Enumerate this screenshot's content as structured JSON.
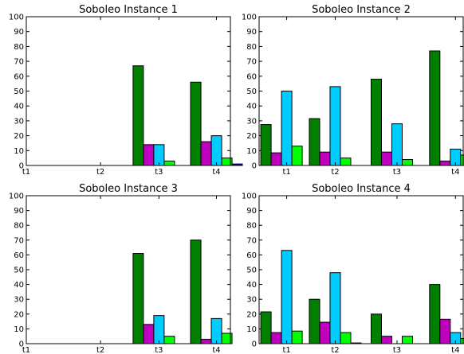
{
  "colors": {
    "bar1": "#007f00",
    "bar2": "#bf00bf",
    "bar3": "#00ccff",
    "bar4": "#00ff00",
    "bar5": "#0000ff",
    "edge": "#000000"
  },
  "chart_data": [
    {
      "type": "bar",
      "title": "Soboleo Instance 1",
      "categories": [
        "t1",
        "t2",
        "t3",
        "t4"
      ],
      "category_positions": [
        0,
        1.6,
        2.86,
        4.1
      ],
      "xlim": [
        0,
        4.4
      ],
      "ylim": [
        0,
        100
      ],
      "yticks": [
        0,
        10,
        20,
        30,
        40,
        50,
        60,
        70,
        80,
        90,
        100
      ],
      "grid": false,
      "series": [
        {
          "values": [
            0,
            0,
            67,
            56
          ]
        },
        {
          "values": [
            0,
            0,
            14,
            16
          ]
        },
        {
          "values": [
            0,
            0,
            14,
            20
          ]
        },
        {
          "values": [
            0,
            0,
            3,
            5
          ]
        },
        {
          "values": [
            0,
            0,
            0,
            1
          ]
        }
      ]
    },
    {
      "type": "bar",
      "title": "Soboleo Instance 2",
      "categories": [
        "t1",
        "t2",
        "t3",
        "t4"
      ],
      "category_positions": [
        0.5,
        1.38,
        2.5,
        3.56
      ],
      "xlim": [
        0,
        3.7
      ],
      "ylim": [
        0,
        100
      ],
      "yticks": [
        0,
        10,
        20,
        30,
        40,
        50,
        60,
        70,
        80,
        90,
        100
      ],
      "grid": false,
      "series": [
        {
          "values": [
            27.5,
            31.5,
            58,
            77
          ]
        },
        {
          "values": [
            8.5,
            9,
            9,
            3
          ]
        },
        {
          "values": [
            50,
            53,
            28,
            11
          ]
        },
        {
          "values": [
            13,
            5,
            4,
            7
          ]
        },
        {
          "values": [
            0,
            0,
            0,
            0
          ]
        }
      ]
    },
    {
      "type": "bar",
      "title": "Soboleo Instance 3",
      "categories": [
        "t1",
        "t2",
        "t3",
        "t4"
      ],
      "category_positions": [
        0,
        1.6,
        2.86,
        4.1
      ],
      "xlim": [
        0,
        4.4
      ],
      "ylim": [
        0,
        100
      ],
      "yticks": [
        0,
        10,
        20,
        30,
        40,
        50,
        60,
        70,
        80,
        90,
        100
      ],
      "grid": false,
      "series": [
        {
          "values": [
            0,
            0,
            61,
            70
          ]
        },
        {
          "values": [
            0,
            0,
            13,
            3
          ]
        },
        {
          "values": [
            0,
            0,
            19,
            17
          ]
        },
        {
          "values": [
            0,
            0,
            5,
            7
          ]
        },
        {
          "values": [
            0,
            0,
            0,
            0
          ]
        }
      ]
    },
    {
      "type": "bar",
      "title": "Soboleo Instance 4",
      "categories": [
        "t1",
        "t2",
        "t3",
        "t4"
      ],
      "category_positions": [
        0.5,
        1.38,
        2.5,
        3.56
      ],
      "xlim": [
        0,
        3.7
      ],
      "ylim": [
        0,
        100
      ],
      "yticks": [
        0,
        10,
        20,
        30,
        40,
        50,
        60,
        70,
        80,
        90,
        100
      ],
      "grid": false,
      "series": [
        {
          "values": [
            21.5,
            30,
            20,
            40
          ]
        },
        {
          "values": [
            7.5,
            14.5,
            5,
            16.5
          ]
        },
        {
          "values": [
            63,
            48,
            0,
            7.5
          ]
        },
        {
          "values": [
            8.5,
            7.5,
            5,
            3.5
          ]
        },
        {
          "values": [
            0,
            0.5,
            0,
            0
          ]
        }
      ]
    }
  ]
}
